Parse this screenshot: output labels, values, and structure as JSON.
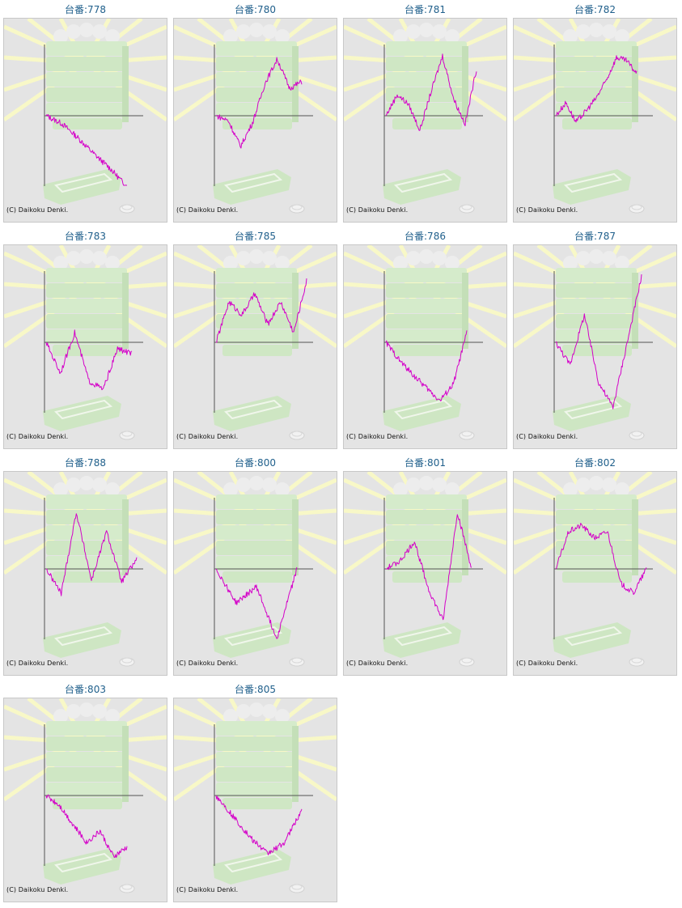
{
  "credit_text": "(C) Daikoku Denki.",
  "colors": {
    "line": "#d400c8",
    "title": "#1f5f8b",
    "panel_bg": "#e4e4e4",
    "axis": "#555555"
  },
  "machines": [
    {
      "label": "台番:778",
      "trend": [
        0,
        -10,
        -28,
        -48,
        -66,
        -88
      ]
    },
    {
      "label": "台番:780",
      "trend": [
        0,
        -6,
        -38,
        -8,
        40,
        70,
        34,
        42
      ]
    },
    {
      "label": "台番:781",
      "trend": [
        0,
        26,
        14,
        -18,
        30,
        74,
        20,
        -10,
        58
      ]
    },
    {
      "label": "台番:782",
      "trend": [
        0,
        16,
        -8,
        6,
        22,
        44,
        72,
        68,
        52
      ]
    },
    {
      "label": "台番:783",
      "trend": [
        0,
        -38,
        12,
        -48,
        -58,
        -8,
        -14
      ]
    },
    {
      "label": "台番:785",
      "trend": [
        0,
        50,
        34,
        60,
        22,
        50,
        12,
        76
      ]
    },
    {
      "label": "台番:786",
      "trend": [
        0,
        -22,
        -40,
        -56,
        -72,
        -52,
        12
      ]
    },
    {
      "label": "台番:787",
      "trend": [
        0,
        -28,
        34,
        -50,
        -80,
        0,
        82
      ]
    },
    {
      "label": "台番:788",
      "trend": [
        0,
        -30,
        70,
        -14,
        46,
        -16,
        12
      ]
    },
    {
      "label": "台番:800",
      "trend": [
        0,
        -42,
        -22,
        -86,
        0
      ]
    },
    {
      "label": "台番:801",
      "trend": [
        0,
        10,
        34,
        -26,
        -64,
        70,
        0
      ]
    },
    {
      "label": "台番:802",
      "trend": [
        0,
        46,
        54,
        38,
        46,
        -18,
        -30,
        0
      ]
    },
    {
      "label": "台番:803",
      "trend": [
        0,
        -12,
        -36,
        -58,
        -44,
        -76,
        -64
      ]
    },
    {
      "label": "台番:805",
      "trend": [
        0,
        -26,
        -52,
        -72,
        -58,
        -18
      ]
    }
  ]
}
